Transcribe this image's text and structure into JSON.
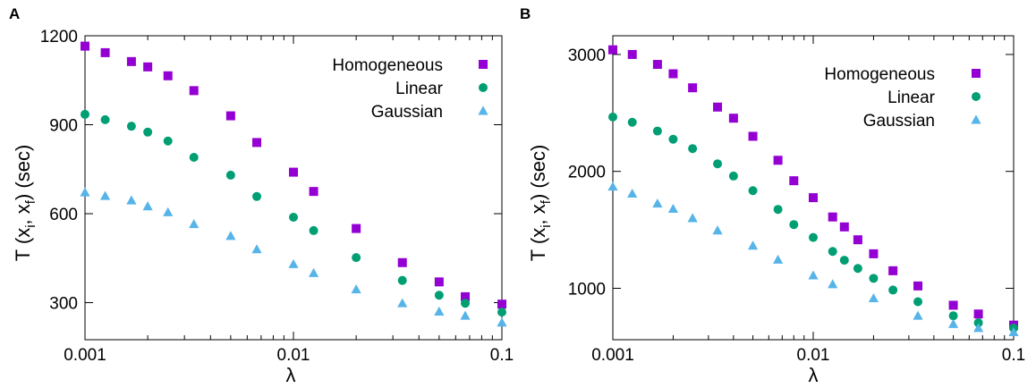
{
  "colors": {
    "homogeneous": "#9400d3",
    "linear": "#009e73",
    "gaussian": "#56b4e9",
    "axis": "#000000"
  },
  "chart_data": [
    {
      "panel": "A",
      "type": "scatter",
      "title": "",
      "xlabel": "λ",
      "ylabel_main": "T (x",
      "ylabel_sub1": "i",
      "ylabel_mid": ", x",
      "ylabel_sub2": "f",
      "ylabel_end": ") (sec)",
      "xscale": "log",
      "xlim": [
        0.001,
        0.1
      ],
      "ylim": [
        175,
        1200
      ],
      "x_ticks": [
        0.001,
        0.01,
        0.1
      ],
      "x_tick_labels": [
        "0.001",
        "0.01",
        "0.1"
      ],
      "y_ticks": [
        300,
        600,
        900,
        1200
      ],
      "y_tick_labels": [
        "300",
        "600",
        "900",
        "1200"
      ],
      "legend_position": "top-right",
      "grid": false,
      "series": [
        {
          "name": "Homogeneous",
          "marker": "square",
          "color_key": "homogeneous",
          "x": [
            0.001,
            0.00125,
            0.00167,
            0.002,
            0.0025,
            0.00333,
            0.005,
            0.00667,
            0.01,
            0.0125,
            0.02,
            0.0333,
            0.05,
            0.0667,
            0.1
          ],
          "y": [
            1165,
            1143,
            1113,
            1095,
            1065,
            1015,
            930,
            840,
            740,
            675,
            550,
            435,
            370,
            320,
            295
          ]
        },
        {
          "name": "Linear",
          "marker": "circle",
          "color_key": "linear",
          "x": [
            0.001,
            0.00125,
            0.00167,
            0.002,
            0.0025,
            0.00333,
            0.005,
            0.00667,
            0.01,
            0.0125,
            0.02,
            0.0333,
            0.05,
            0.0667,
            0.1
          ],
          "y": [
            935,
            917,
            895,
            875,
            845,
            790,
            730,
            658,
            588,
            543,
            452,
            375,
            325,
            298,
            268
          ]
        },
        {
          "name": "Gaussian",
          "marker": "triangle",
          "color_key": "gaussian",
          "x": [
            0.001,
            0.00125,
            0.00167,
            0.002,
            0.0025,
            0.00333,
            0.005,
            0.00667,
            0.01,
            0.0125,
            0.02,
            0.0333,
            0.05,
            0.0667,
            0.1
          ],
          "y": [
            672,
            660,
            645,
            625,
            605,
            565,
            525,
            480,
            430,
            400,
            345,
            298,
            270,
            256,
            233
          ]
        }
      ]
    },
    {
      "panel": "B",
      "type": "scatter",
      "title": "",
      "xlabel": "λ",
      "ylabel_main": "T (x",
      "ylabel_sub1": "i",
      "ylabel_mid": ", x",
      "ylabel_sub2": "f",
      "ylabel_end": ") (sec)",
      "xscale": "log",
      "xlim": [
        0.001,
        0.1
      ],
      "ylim": [
        560,
        3160
      ],
      "x_ticks": [
        0.001,
        0.01,
        0.1
      ],
      "x_tick_labels": [
        "0.001",
        "0.01",
        "0.1"
      ],
      "y_ticks": [
        1000,
        2000,
        3000
      ],
      "y_tick_labels": [
        "1000",
        "2000",
        "3000"
      ],
      "legend_position": "top-right",
      "grid": false,
      "series": [
        {
          "name": "Homogeneous",
          "marker": "square",
          "color_key": "homogeneous",
          "x": [
            0.001,
            0.00125,
            0.00167,
            0.002,
            0.0025,
            0.00333,
            0.004,
            0.005,
            0.00667,
            0.008,
            0.01,
            0.0125,
            0.0143,
            0.0167,
            0.02,
            0.025,
            0.0333,
            0.05,
            0.0667,
            0.1
          ],
          "y": [
            3040,
            3000,
            2915,
            2835,
            2715,
            2550,
            2455,
            2300,
            2095,
            1920,
            1775,
            1610,
            1525,
            1415,
            1295,
            1150,
            1020,
            855,
            780,
            685
          ]
        },
        {
          "name": "Linear",
          "marker": "circle",
          "color_key": "linear",
          "x": [
            0.001,
            0.00125,
            0.00167,
            0.002,
            0.0025,
            0.00333,
            0.004,
            0.005,
            0.00667,
            0.008,
            0.01,
            0.0125,
            0.0143,
            0.0167,
            0.02,
            0.025,
            0.0333,
            0.05,
            0.0667,
            0.1
          ],
          "y": [
            2465,
            2420,
            2345,
            2275,
            2195,
            2065,
            1960,
            1835,
            1675,
            1545,
            1435,
            1315,
            1240,
            1170,
            1085,
            985,
            885,
            765,
            705,
            660
          ]
        },
        {
          "name": "Gaussian",
          "marker": "triangle",
          "color_key": "gaussian",
          "x": [
            0.001,
            0.00125,
            0.00167,
            0.002,
            0.0025,
            0.00333,
            0.005,
            0.00667,
            0.01,
            0.0125,
            0.02,
            0.0333,
            0.05,
            0.0667,
            0.1
          ],
          "y": [
            1870,
            1810,
            1725,
            1680,
            1600,
            1495,
            1365,
            1245,
            1110,
            1035,
            915,
            765,
            695,
            660,
            625
          ]
        }
      ]
    }
  ]
}
